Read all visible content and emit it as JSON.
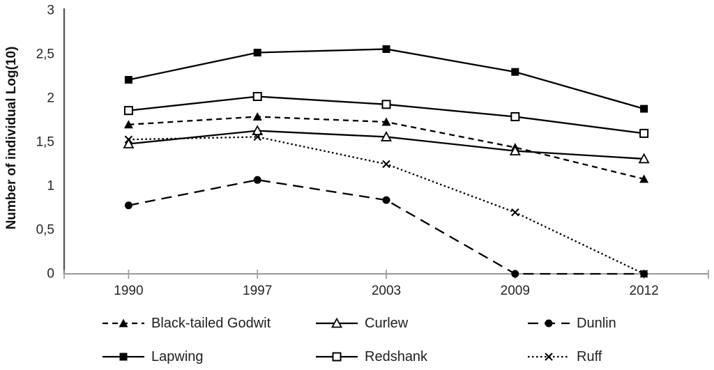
{
  "chart_data": {
    "type": "line",
    "title": "",
    "xlabel": "",
    "ylabel": "Number of individual Log(10)",
    "categories": [
      "1990",
      "1997",
      "2003",
      "2009",
      "2012"
    ],
    "ylim": [
      0,
      3
    ],
    "grid": false,
    "legend_position": "bottom",
    "y_ticks": [
      {
        "v": 0,
        "label": "0"
      },
      {
        "v": 0.5,
        "label": "0,5"
      },
      {
        "v": 1,
        "label": "1"
      },
      {
        "v": 1.5,
        "label": "1,5"
      },
      {
        "v": 2,
        "label": "2"
      },
      {
        "v": 2.5,
        "label": "2,5"
      },
      {
        "v": 3,
        "label": "3"
      }
    ],
    "series": [
      {
        "name": "Black-tailed Godwit",
        "values": [
          1.7,
          1.79,
          1.73,
          1.44,
          1.08
        ],
        "line": "dash",
        "marker": "triangle-filled"
      },
      {
        "name": "Curlew",
        "values": [
          1.48,
          1.63,
          1.56,
          1.4,
          1.31
        ],
        "line": "solid",
        "marker": "triangle-open"
      },
      {
        "name": "Dunlin",
        "values": [
          0.78,
          1.07,
          0.84,
          0,
          0
        ],
        "line": "longdash",
        "marker": "circle-filled"
      },
      {
        "name": "Lapwing",
        "values": [
          2.21,
          2.52,
          2.56,
          2.3,
          1.88
        ],
        "line": "solid",
        "marker": "square-filled"
      },
      {
        "name": "Redshank",
        "values": [
          1.86,
          2.02,
          1.93,
          1.79,
          1.6
        ],
        "line": "solid",
        "marker": "square-open"
      },
      {
        "name": "Ruff",
        "values": [
          1.53,
          1.56,
          1.25,
          0.7,
          0
        ],
        "line": "dot",
        "marker": "x"
      }
    ],
    "colors": {
      "series": "#000000",
      "axis_x": "#9a9a9a",
      "axis_y": "#5a5a5a",
      "tick_text": "#262626"
    }
  },
  "legend": {
    "rows": [
      [
        "Black-tailed Godwit",
        "Curlew",
        "Dunlin"
      ],
      [
        "Lapwing",
        "Redshank",
        "Ruff"
      ]
    ]
  }
}
